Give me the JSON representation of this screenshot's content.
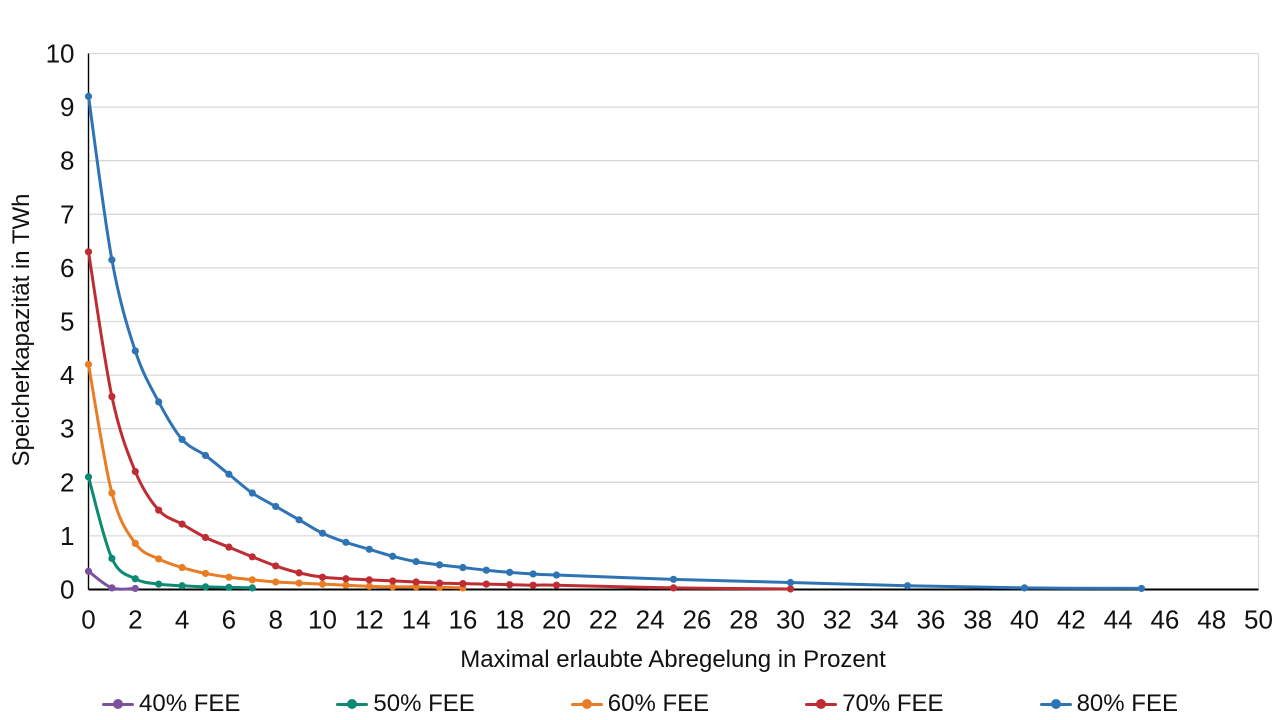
{
  "chart_data": {
    "type": "line",
    "title": "",
    "xlabel": "Maximal erlaubte Abregelung in Prozent",
    "ylabel": "Speicherkapazität in TWh",
    "xlim": [
      0,
      50
    ],
    "ylim": [
      0,
      10
    ],
    "x_ticks": [
      0,
      2,
      4,
      6,
      8,
      10,
      12,
      14,
      16,
      18,
      20,
      22,
      24,
      26,
      28,
      30,
      32,
      34,
      36,
      38,
      40,
      42,
      44,
      46,
      48,
      50
    ],
    "y_ticks": [
      0,
      1,
      2,
      3,
      4,
      5,
      6,
      7,
      8,
      9,
      10
    ],
    "grid": "horizontal",
    "gridline_color": "#D9D9D9",
    "axis_color": "#000000",
    "text_color": "#111111",
    "legend_position": "bottom",
    "marker": "circle",
    "series": [
      {
        "name": "40% FEE",
        "color": "#7A52A0",
        "x": [
          0,
          1,
          2
        ],
        "y": [
          0.34,
          0.03,
          0.02
        ]
      },
      {
        "name": "50% FEE",
        "color": "#0E8A74",
        "x": [
          0,
          1,
          2,
          3,
          4,
          5,
          6,
          7
        ],
        "y": [
          2.1,
          0.58,
          0.2,
          0.1,
          0.07,
          0.05,
          0.04,
          0.03
        ]
      },
      {
        "name": "60% FEE",
        "color": "#E87D25",
        "x": [
          0,
          1,
          2,
          3,
          4,
          5,
          6,
          7,
          8,
          9,
          10,
          11,
          12,
          13,
          14,
          15,
          16
        ],
        "y": [
          4.2,
          1.8,
          0.86,
          0.57,
          0.41,
          0.3,
          0.23,
          0.18,
          0.14,
          0.12,
          0.1,
          0.08,
          0.06,
          0.05,
          0.05,
          0.04,
          0.03
        ]
      },
      {
        "name": "70% FEE",
        "color": "#BE2D33",
        "x": [
          0,
          1,
          2,
          3,
          4,
          5,
          6,
          7,
          8,
          9,
          10,
          11,
          12,
          13,
          14,
          15,
          16,
          17,
          18,
          19,
          20,
          25,
          30
        ],
        "y": [
          6.3,
          3.6,
          2.2,
          1.48,
          1.22,
          0.97,
          0.79,
          0.61,
          0.44,
          0.31,
          0.23,
          0.2,
          0.18,
          0.16,
          0.14,
          0.12,
          0.11,
          0.1,
          0.09,
          0.08,
          0.08,
          0.03,
          0.01
        ]
      },
      {
        "name": "80% FEE",
        "color": "#2E74B5",
        "x": [
          0,
          1,
          2,
          3,
          4,
          5,
          6,
          7,
          8,
          9,
          10,
          11,
          12,
          13,
          14,
          15,
          16,
          17,
          18,
          19,
          20,
          25,
          30,
          35,
          40,
          45
        ],
        "y": [
          9.2,
          6.15,
          4.45,
          3.5,
          2.8,
          2.5,
          2.15,
          1.8,
          1.55,
          1.3,
          1.05,
          0.88,
          0.75,
          0.62,
          0.52,
          0.46,
          0.41,
          0.36,
          0.32,
          0.29,
          0.27,
          0.19,
          0.13,
          0.07,
          0.03,
          0.02
        ]
      }
    ]
  }
}
